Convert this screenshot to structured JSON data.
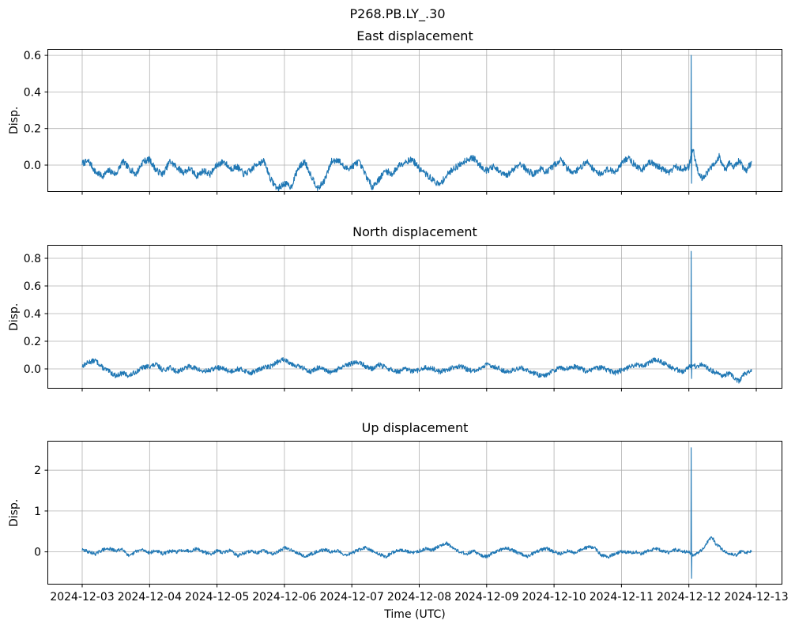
{
  "figure": {
    "suptitle": "P268.PB.LY_.30",
    "colors": {
      "line": "#1f77b4",
      "grid": "#b0b0b0",
      "spine": "#000000",
      "text": "#000000",
      "background": "#ffffff"
    }
  },
  "x_axis": {
    "label": "Time (UTC)",
    "lim_days": [
      -0.516,
      10.387
    ],
    "tick_days": [
      0,
      1,
      2,
      3,
      4,
      5,
      6,
      7,
      8,
      9,
      10
    ],
    "tick_labels": [
      "2024-12-03",
      "2024-12-04",
      "2024-12-05",
      "2024-12-06",
      "2024-12-07",
      "2024-12-08",
      "2024-12-09",
      "2024-12-10",
      "2024-12-11",
      "2024-12-12",
      "2024-12-13"
    ],
    "data_start_day": 0.0,
    "data_end_day": 9.93
  },
  "chart_data": [
    {
      "type": "line",
      "title": "East displacement",
      "ylabel": "Disp.",
      "ylim": [
        -0.147,
        0.635
      ],
      "yticks": [
        {
          "v": 0.0,
          "label": "0.0"
        },
        {
          "v": 0.2,
          "label": "0.2"
        },
        {
          "v": 0.4,
          "label": "0.4"
        },
        {
          "v": 0.6,
          "label": "0.6"
        }
      ],
      "grid": true,
      "noise_amp": 0.018,
      "seed": 7,
      "spike": {
        "day": 9.03,
        "high": 0.6,
        "low": -0.1
      },
      "keypoints": [
        [
          0.0,
          0.01
        ],
        [
          0.1,
          0.02
        ],
        [
          0.2,
          -0.04
        ],
        [
          0.3,
          -0.06
        ],
        [
          0.4,
          -0.03
        ],
        [
          0.5,
          -0.05
        ],
        [
          0.6,
          0.02
        ],
        [
          0.7,
          -0.02
        ],
        [
          0.8,
          -0.05
        ],
        [
          0.9,
          0.02
        ],
        [
          1.0,
          0.03
        ],
        [
          1.1,
          -0.03
        ],
        [
          1.2,
          -0.05
        ],
        [
          1.3,
          0.02
        ],
        [
          1.4,
          -0.01
        ],
        [
          1.5,
          -0.04
        ],
        [
          1.6,
          -0.02
        ],
        [
          1.7,
          -0.06
        ],
        [
          1.8,
          -0.03
        ],
        [
          1.9,
          -0.05
        ],
        [
          2.0,
          0.0
        ],
        [
          2.1,
          0.02
        ],
        [
          2.2,
          -0.02
        ],
        [
          2.3,
          -0.01
        ],
        [
          2.4,
          -0.05
        ],
        [
          2.5,
          -0.03
        ],
        [
          2.6,
          0.01
        ],
        [
          2.7,
          0.02
        ],
        [
          2.8,
          -0.08
        ],
        [
          2.9,
          -0.13
        ],
        [
          3.0,
          -0.1
        ],
        [
          3.1,
          -0.12
        ],
        [
          3.2,
          -0.02
        ],
        [
          3.3,
          0.02
        ],
        [
          3.4,
          -0.06
        ],
        [
          3.5,
          -0.13
        ],
        [
          3.6,
          -0.08
        ],
        [
          3.7,
          0.02
        ],
        [
          3.8,
          0.03
        ],
        [
          3.9,
          -0.02
        ],
        [
          4.0,
          -0.01
        ],
        [
          4.1,
          0.02
        ],
        [
          4.2,
          -0.05
        ],
        [
          4.3,
          -0.12
        ],
        [
          4.4,
          -0.08
        ],
        [
          4.5,
          -0.03
        ],
        [
          4.6,
          -0.05
        ],
        [
          4.7,
          0.0
        ],
        [
          4.8,
          0.02
        ],
        [
          4.9,
          0.03
        ],
        [
          5.0,
          -0.02
        ],
        [
          5.1,
          -0.05
        ],
        [
          5.2,
          -0.08
        ],
        [
          5.3,
          -0.11
        ],
        [
          5.4,
          -0.06
        ],
        [
          5.5,
          -0.02
        ],
        [
          5.6,
          0.0
        ],
        [
          5.7,
          0.03
        ],
        [
          5.8,
          0.04
        ],
        [
          5.9,
          0.0
        ],
        [
          6.0,
          -0.03
        ],
        [
          6.1,
          -0.01
        ],
        [
          6.2,
          -0.04
        ],
        [
          6.3,
          -0.06
        ],
        [
          6.4,
          -0.02
        ],
        [
          6.5,
          0.01
        ],
        [
          6.6,
          -0.03
        ],
        [
          6.7,
          -0.05
        ],
        [
          6.8,
          -0.02
        ],
        [
          6.9,
          -0.04
        ],
        [
          7.0,
          0.0
        ],
        [
          7.1,
          0.03
        ],
        [
          7.2,
          -0.02
        ],
        [
          7.3,
          -0.04
        ],
        [
          7.4,
          -0.01
        ],
        [
          7.5,
          0.02
        ],
        [
          7.6,
          -0.03
        ],
        [
          7.7,
          -0.05
        ],
        [
          7.8,
          -0.02
        ],
        [
          7.9,
          -0.04
        ],
        [
          8.0,
          0.01
        ],
        [
          8.1,
          0.04
        ],
        [
          8.2,
          0.0
        ],
        [
          8.3,
          -0.03
        ],
        [
          8.4,
          0.02
        ],
        [
          8.5,
          0.0
        ],
        [
          8.6,
          -0.02
        ],
        [
          8.7,
          -0.04
        ],
        [
          8.8,
          -0.01
        ],
        [
          8.9,
          -0.02
        ],
        [
          9.0,
          -0.01
        ],
        [
          9.06,
          0.09
        ],
        [
          9.1,
          0.02
        ],
        [
          9.15,
          -0.05
        ],
        [
          9.2,
          -0.07
        ],
        [
          9.3,
          -0.03
        ],
        [
          9.4,
          0.02
        ],
        [
          9.45,
          0.05
        ],
        [
          9.5,
          0.0
        ],
        [
          9.55,
          -0.03
        ],
        [
          9.6,
          0.02
        ],
        [
          9.65,
          -0.02
        ],
        [
          9.7,
          0.0
        ],
        [
          9.75,
          0.03
        ],
        [
          9.8,
          -0.01
        ],
        [
          9.85,
          -0.03
        ],
        [
          9.9,
          0.0
        ],
        [
          9.93,
          0.01
        ]
      ]
    },
    {
      "type": "line",
      "title": "North displacement",
      "ylabel": "Disp.",
      "ylim": [
        -0.143,
        0.897
      ],
      "yticks": [
        {
          "v": 0.0,
          "label": "0.0"
        },
        {
          "v": 0.2,
          "label": "0.2"
        },
        {
          "v": 0.4,
          "label": "0.4"
        },
        {
          "v": 0.6,
          "label": "0.6"
        },
        {
          "v": 0.8,
          "label": "0.8"
        }
      ],
      "grid": true,
      "noise_amp": 0.018,
      "seed": 13,
      "spike": {
        "day": 9.03,
        "high": 0.85,
        "low": -0.07
      },
      "keypoints": [
        [
          0.0,
          0.02
        ],
        [
          0.1,
          0.05
        ],
        [
          0.2,
          0.06
        ],
        [
          0.3,
          0.01
        ],
        [
          0.4,
          -0.02
        ],
        [
          0.5,
          -0.05
        ],
        [
          0.6,
          -0.03
        ],
        [
          0.7,
          -0.05
        ],
        [
          0.8,
          -0.02
        ],
        [
          0.9,
          0.01
        ],
        [
          1.0,
          0.02
        ],
        [
          1.1,
          0.03
        ],
        [
          1.2,
          -0.01
        ],
        [
          1.3,
          0.01
        ],
        [
          1.4,
          -0.02
        ],
        [
          1.5,
          0.0
        ],
        [
          1.6,
          0.02
        ],
        [
          1.7,
          0.0
        ],
        [
          1.8,
          -0.02
        ],
        [
          1.9,
          -0.01
        ],
        [
          2.0,
          0.01
        ],
        [
          2.1,
          0.0
        ],
        [
          2.2,
          -0.02
        ],
        [
          2.3,
          0.0
        ],
        [
          2.4,
          -0.01
        ],
        [
          2.5,
          -0.03
        ],
        [
          2.6,
          -0.01
        ],
        [
          2.7,
          0.01
        ],
        [
          2.8,
          0.02
        ],
        [
          2.9,
          0.05
        ],
        [
          3.0,
          0.07
        ],
        [
          3.1,
          0.04
        ],
        [
          3.2,
          0.02
        ],
        [
          3.3,
          0.0
        ],
        [
          3.4,
          -0.02
        ],
        [
          3.5,
          0.01
        ],
        [
          3.6,
          -0.01
        ],
        [
          3.7,
          -0.03
        ],
        [
          3.8,
          0.0
        ],
        [
          3.9,
          0.02
        ],
        [
          4.0,
          0.04
        ],
        [
          4.1,
          0.05
        ],
        [
          4.2,
          0.02
        ],
        [
          4.3,
          0.0
        ],
        [
          4.4,
          0.03
        ],
        [
          4.5,
          0.01
        ],
        [
          4.6,
          -0.01
        ],
        [
          4.7,
          -0.02
        ],
        [
          4.8,
          0.0
        ],
        [
          4.9,
          -0.02
        ],
        [
          5.0,
          -0.01
        ],
        [
          5.1,
          0.01
        ],
        [
          5.2,
          0.0
        ],
        [
          5.3,
          -0.02
        ],
        [
          5.4,
          -0.01
        ],
        [
          5.5,
          0.01
        ],
        [
          5.6,
          0.02
        ],
        [
          5.7,
          0.0
        ],
        [
          5.8,
          -0.02
        ],
        [
          5.9,
          0.0
        ],
        [
          6.0,
          0.03
        ],
        [
          6.1,
          0.02
        ],
        [
          6.2,
          0.0
        ],
        [
          6.3,
          -0.02
        ],
        [
          6.4,
          -0.01
        ],
        [
          6.5,
          0.01
        ],
        [
          6.6,
          -0.01
        ],
        [
          6.7,
          -0.03
        ],
        [
          6.8,
          -0.05
        ],
        [
          6.9,
          -0.04
        ],
        [
          7.0,
          -0.01
        ],
        [
          7.1,
          0.01
        ],
        [
          7.2,
          0.0
        ],
        [
          7.3,
          0.02
        ],
        [
          7.4,
          0.0
        ],
        [
          7.5,
          -0.02
        ],
        [
          7.6,
          0.0
        ],
        [
          7.7,
          0.01
        ],
        [
          7.8,
          -0.01
        ],
        [
          7.9,
          -0.03
        ],
        [
          8.0,
          -0.01
        ],
        [
          8.1,
          0.01
        ],
        [
          8.2,
          0.03
        ],
        [
          8.3,
          0.02
        ],
        [
          8.4,
          0.04
        ],
        [
          8.5,
          0.07
        ],
        [
          8.6,
          0.05
        ],
        [
          8.7,
          0.02
        ],
        [
          8.8,
          0.0
        ],
        [
          8.9,
          -0.02
        ],
        [
          9.0,
          0.01
        ],
        [
          9.06,
          0.03
        ],
        [
          9.1,
          0.02
        ],
        [
          9.2,
          0.03
        ],
        [
          9.3,
          0.0
        ],
        [
          9.4,
          -0.03
        ],
        [
          9.5,
          -0.05
        ],
        [
          9.6,
          -0.03
        ],
        [
          9.7,
          -0.08
        ],
        [
          9.75,
          -0.09
        ],
        [
          9.8,
          -0.05
        ],
        [
          9.85,
          -0.03
        ],
        [
          9.9,
          -0.02
        ],
        [
          9.93,
          -0.02
        ]
      ]
    },
    {
      "type": "line",
      "title": "Up displacement",
      "ylabel": "Disp.",
      "ylim": [
        -0.8,
        2.72
      ],
      "yticks": [
        {
          "v": 0,
          "label": "0"
        },
        {
          "v": 1,
          "label": "1"
        },
        {
          "v": 2,
          "label": "2"
        }
      ],
      "grid": true,
      "noise_amp": 0.042,
      "seed": 29,
      "spike": {
        "day": 9.03,
        "high": 2.55,
        "low": -0.65
      },
      "keypoints": [
        [
          0.0,
          0.05
        ],
        [
          0.1,
          0.0
        ],
        [
          0.2,
          -0.05
        ],
        [
          0.3,
          0.05
        ],
        [
          0.4,
          0.08
        ],
        [
          0.5,
          0.02
        ],
        [
          0.6,
          0.08
        ],
        [
          0.7,
          -0.12
        ],
        [
          0.8,
          0.02
        ],
        [
          0.9,
          0.05
        ],
        [
          1.0,
          -0.02
        ],
        [
          1.1,
          0.03
        ],
        [
          1.2,
          -0.05
        ],
        [
          1.3,
          0.02
        ],
        [
          1.4,
          0.0
        ],
        [
          1.5,
          0.05
        ],
        [
          1.6,
          0.02
        ],
        [
          1.7,
          0.08
        ],
        [
          1.8,
          0.0
        ],
        [
          1.9,
          -0.05
        ],
        [
          2.0,
          0.02
        ],
        [
          2.1,
          -0.02
        ],
        [
          2.2,
          0.05
        ],
        [
          2.3,
          -0.1
        ],
        [
          2.4,
          -0.03
        ],
        [
          2.5,
          0.02
        ],
        [
          2.6,
          -0.02
        ],
        [
          2.7,
          0.03
        ],
        [
          2.8,
          -0.05
        ],
        [
          2.9,
          0.0
        ],
        [
          3.0,
          0.1
        ],
        [
          3.1,
          0.05
        ],
        [
          3.2,
          -0.02
        ],
        [
          3.3,
          -0.12
        ],
        [
          3.4,
          -0.05
        ],
        [
          3.5,
          0.02
        ],
        [
          3.6,
          0.05
        ],
        [
          3.7,
          0.0
        ],
        [
          3.8,
          0.03
        ],
        [
          3.9,
          -0.08
        ],
        [
          4.0,
          -0.03
        ],
        [
          4.1,
          0.05
        ],
        [
          4.2,
          0.1
        ],
        [
          4.3,
          0.02
        ],
        [
          4.4,
          -0.05
        ],
        [
          4.5,
          -0.12
        ],
        [
          4.6,
          -0.02
        ],
        [
          4.7,
          0.05
        ],
        [
          4.8,
          0.02
        ],
        [
          4.9,
          -0.03
        ],
        [
          5.0,
          0.02
        ],
        [
          5.1,
          0.08
        ],
        [
          5.2,
          0.05
        ],
        [
          5.3,
          0.15
        ],
        [
          5.4,
          0.22
        ],
        [
          5.5,
          0.1
        ],
        [
          5.6,
          0.0
        ],
        [
          5.7,
          -0.05
        ],
        [
          5.8,
          0.03
        ],
        [
          5.9,
          -0.08
        ],
        [
          6.0,
          -0.12
        ],
        [
          6.1,
          -0.02
        ],
        [
          6.2,
          0.05
        ],
        [
          6.3,
          0.1
        ],
        [
          6.4,
          0.03
        ],
        [
          6.5,
          -0.05
        ],
        [
          6.6,
          -0.12
        ],
        [
          6.7,
          -0.03
        ],
        [
          6.8,
          0.05
        ],
        [
          6.9,
          0.08
        ],
        [
          7.0,
          0.0
        ],
        [
          7.1,
          -0.05
        ],
        [
          7.2,
          0.02
        ],
        [
          7.3,
          -0.02
        ],
        [
          7.4,
          0.05
        ],
        [
          7.5,
          0.12
        ],
        [
          7.6,
          0.1
        ],
        [
          7.7,
          -0.08
        ],
        [
          7.8,
          -0.13
        ],
        [
          7.9,
          -0.05
        ],
        [
          8.0,
          0.02
        ],
        [
          8.1,
          -0.02
        ],
        [
          8.2,
          0.0
        ],
        [
          8.3,
          -0.05
        ],
        [
          8.4,
          0.03
        ],
        [
          8.5,
          0.08
        ],
        [
          8.6,
          0.03
        ],
        [
          8.7,
          -0.02
        ],
        [
          8.8,
          0.05
        ],
        [
          8.9,
          0.02
        ],
        [
          9.0,
          0.0
        ],
        [
          9.06,
          -0.08
        ],
        [
          9.1,
          -0.05
        ],
        [
          9.2,
          0.05
        ],
        [
          9.3,
          0.3
        ],
        [
          9.35,
          0.35
        ],
        [
          9.4,
          0.2
        ],
        [
          9.5,
          0.05
        ],
        [
          9.6,
          -0.05
        ],
        [
          9.7,
          -0.08
        ],
        [
          9.75,
          0.0
        ],
        [
          9.8,
          0.02
        ],
        [
          9.85,
          -0.02
        ],
        [
          9.9,
          0.0
        ],
        [
          9.93,
          0.05
        ]
      ]
    }
  ]
}
